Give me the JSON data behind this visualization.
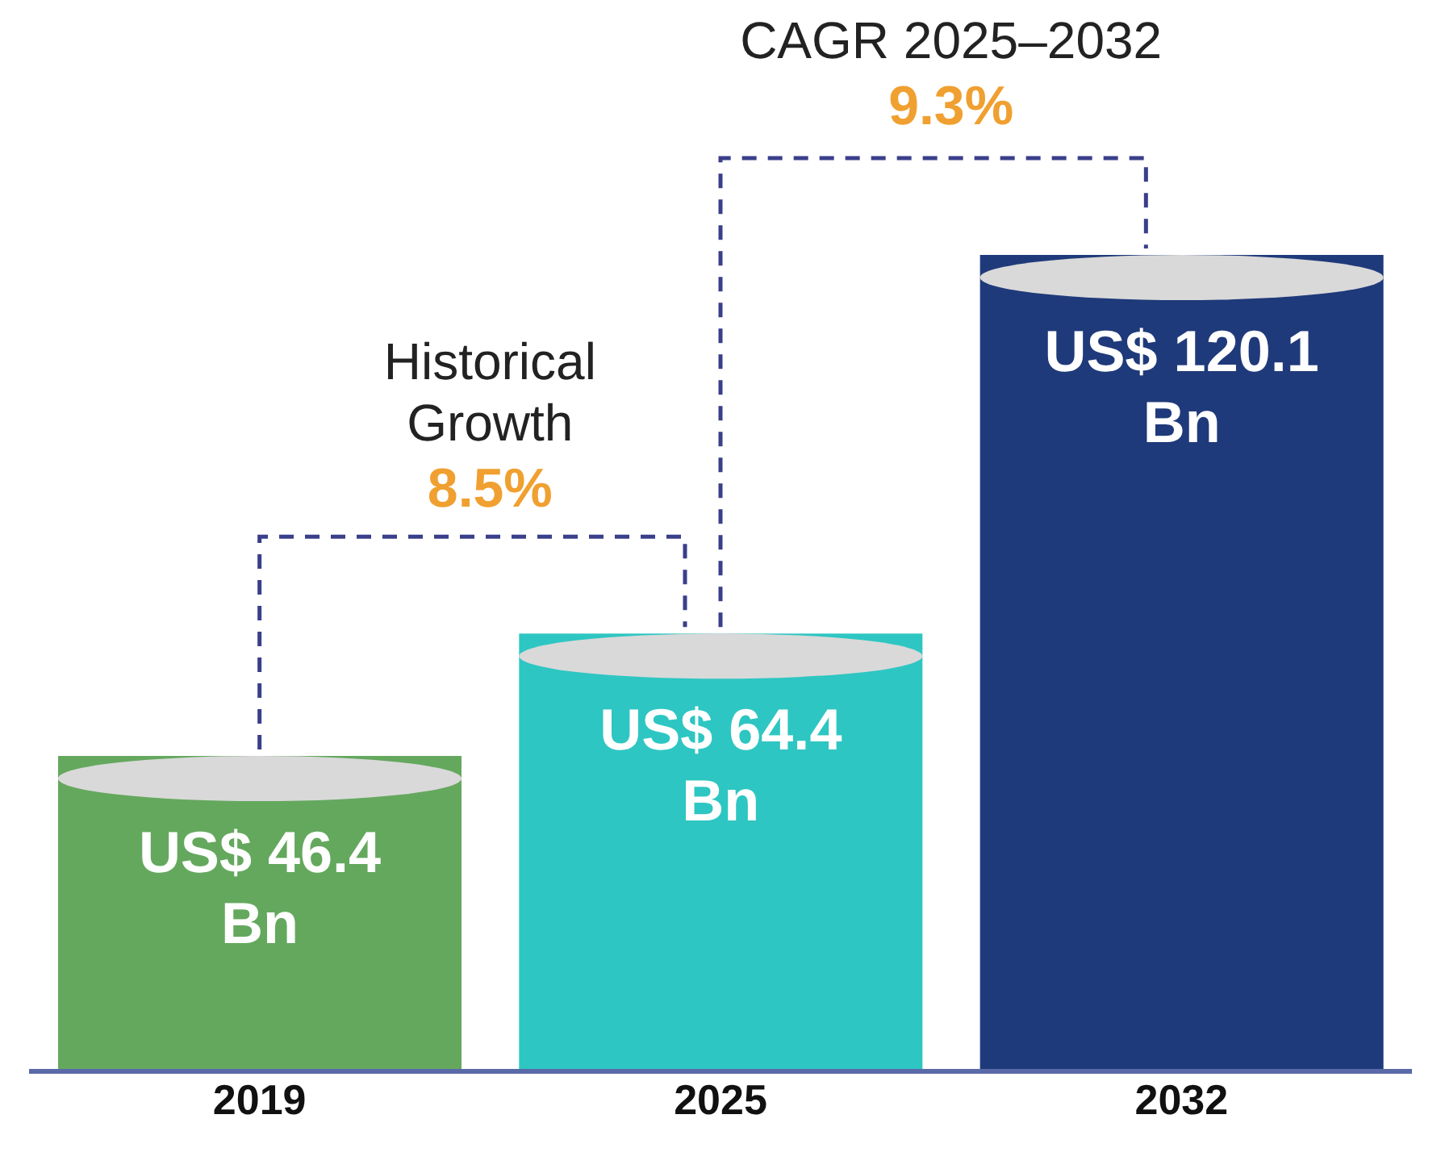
{
  "chart_data": {
    "type": "bar",
    "categories": [
      "2019",
      "2025",
      "2032"
    ],
    "values": [
      46.4,
      64.4,
      120.1
    ],
    "colors": [
      "#64a85e",
      "#2ec6c2",
      "#1f3a7a"
    ],
    "value_labels": [
      "US$ 46.4 Bn",
      "US$ 64.4 Bn",
      "US$ 120.1 Bn"
    ],
    "annotations": [
      "Historical Growth",
      "8.5%",
      "CAGR 2025–2032",
      "9.3%"
    ]
  }
}
